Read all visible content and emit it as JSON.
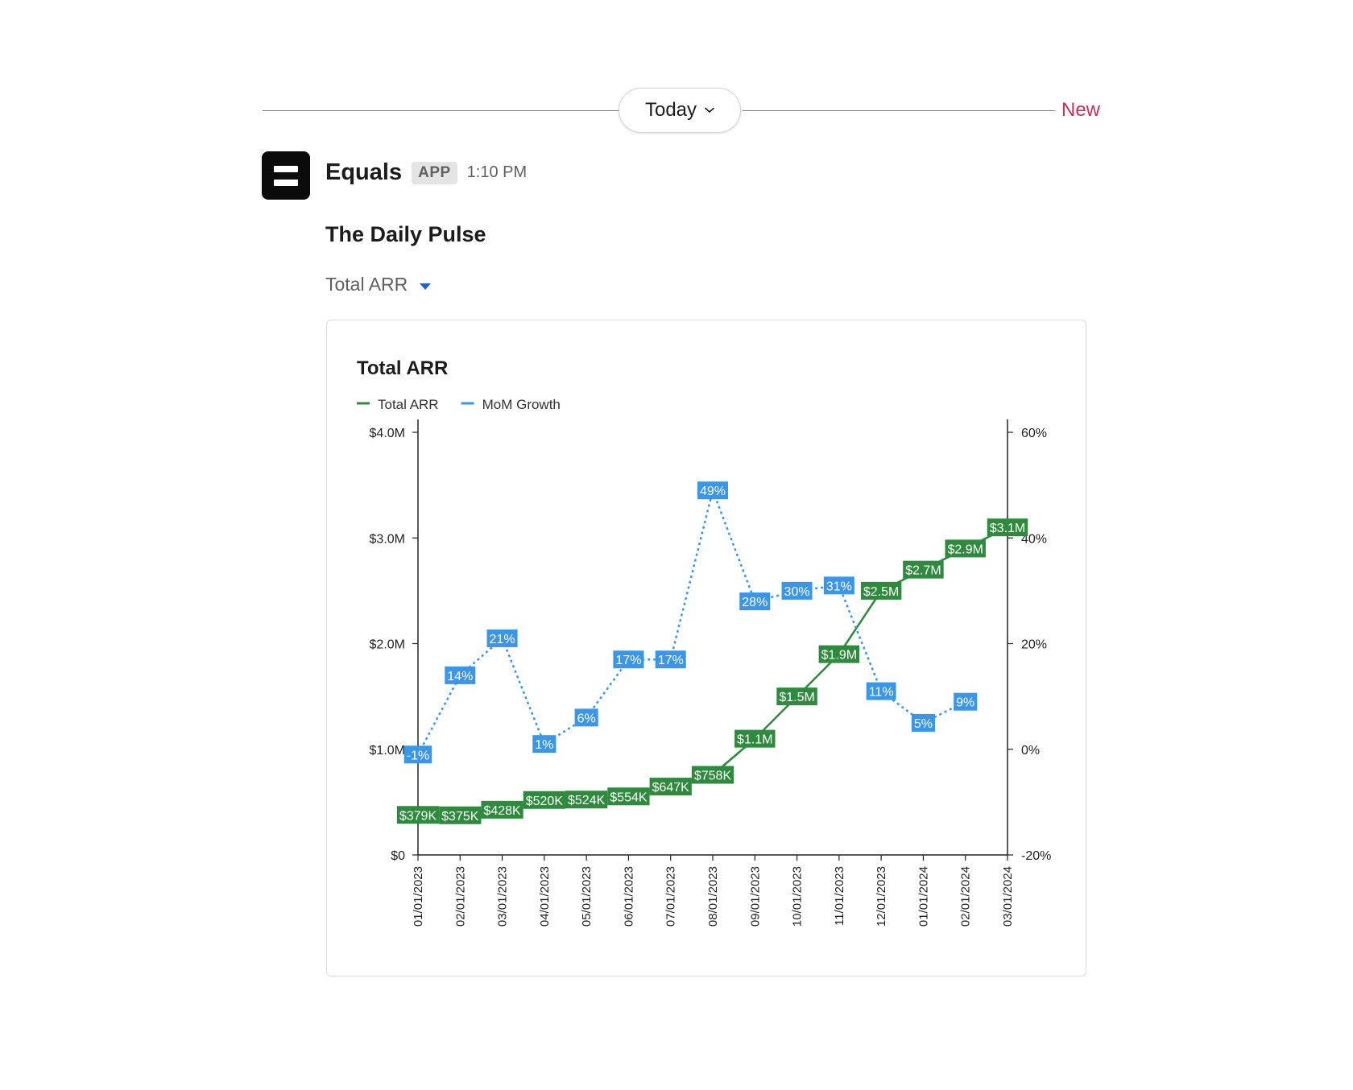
{
  "divider": {
    "label": "Today",
    "new_label": "New"
  },
  "message": {
    "sender": "Equals",
    "badge": "APP",
    "time": "1:10 PM",
    "title": "The Daily Pulse",
    "metric_select": "Total ARR"
  },
  "colors": {
    "arr": "#2e8b3e",
    "growth": "#3a96e8",
    "new": "#cc2f58",
    "accent_caret": "#1d5fe0"
  },
  "icons": {
    "divider_chevron": "chevron-down-icon",
    "metric_caret": "caret-down-icon",
    "app": "equals-logo-icon"
  },
  "chart_data": {
    "type": "line",
    "title": "Total ARR",
    "categories": [
      "01/01/2023",
      "02/01/2023",
      "03/01/2023",
      "04/01/2023",
      "05/01/2023",
      "06/01/2023",
      "07/01/2023",
      "08/01/2023",
      "09/01/2023",
      "10/01/2023",
      "11/01/2023",
      "12/01/2023",
      "01/01/2024",
      "02/01/2024",
      "03/01/2024"
    ],
    "series": [
      {
        "name": "Total ARR",
        "axis": "left",
        "style": "solid",
        "color": "#2e8b3e",
        "values": [
          379000,
          375000,
          428000,
          520000,
          524000,
          554000,
          647000,
          758000,
          1100000,
          1500000,
          1900000,
          2500000,
          2700000,
          2900000,
          3100000
        ],
        "labels": [
          "$379K",
          "$375K",
          "$428K",
          "$520K",
          "$524K",
          "$554K",
          "$647K",
          "$758K",
          "$1.1M",
          "$1.5M",
          "$1.9M",
          "$2.5M",
          "$2.7M",
          "$2.9M",
          "$3.1M"
        ]
      },
      {
        "name": "MoM Growth",
        "axis": "right",
        "style": "dashed",
        "color": "#3a96e8",
        "values": [
          -1,
          14,
          21,
          1,
          6,
          17,
          17,
          49,
          28,
          30,
          31,
          11,
          5,
          9,
          null
        ],
        "labels": [
          "-1%",
          "14%",
          "21%",
          "1%",
          "6%",
          "17%",
          "17%",
          "49%",
          "28%",
          "30%",
          "31%",
          "11%",
          "5%",
          "9%",
          ""
        ]
      }
    ],
    "y_left": {
      "ylim": [
        0,
        4000000
      ],
      "ticks": [
        0,
        1000000,
        2000000,
        3000000,
        4000000
      ],
      "tick_labels": [
        "$0",
        "$1.0M",
        "$2.0M",
        "$3.0M",
        "$4.0M"
      ]
    },
    "y_right": {
      "ylim": [
        -20,
        60
      ],
      "ticks": [
        -20,
        0,
        20,
        40,
        60
      ],
      "tick_labels": [
        "-20%",
        "0%",
        "20%",
        "40%",
        "60%"
      ]
    },
    "legend_position": "top-left",
    "grid": false
  }
}
